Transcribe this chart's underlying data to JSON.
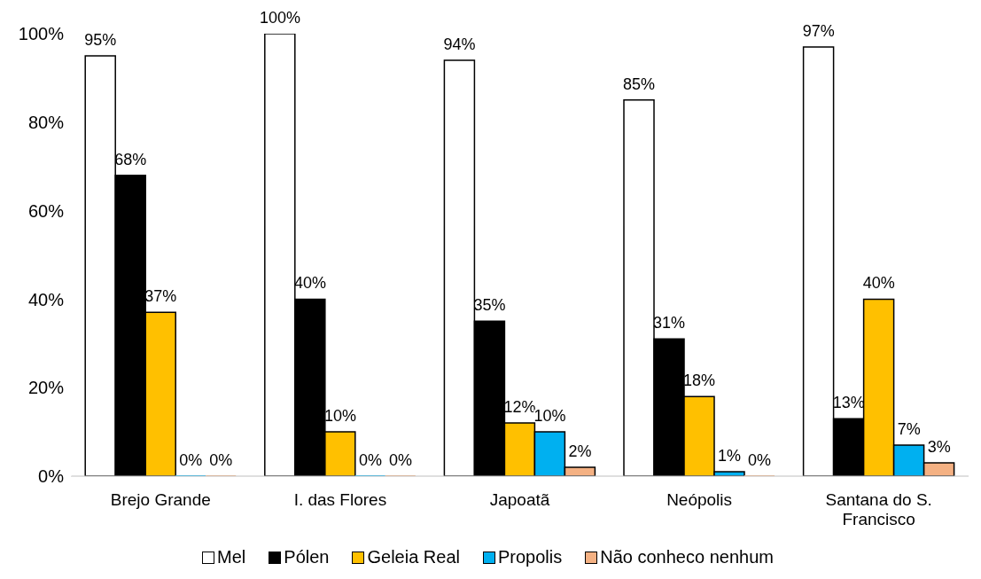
{
  "chart_data": {
    "type": "bar",
    "categories": [
      "Brejo Grande",
      "I. das Flores",
      "Japoatã",
      "Neópolis",
      "Santana do S. Francisco"
    ],
    "series": [
      {
        "name": "Mel",
        "color": "#ffffff",
        "values": [
          95,
          100,
          94,
          85,
          97
        ],
        "value_labels": [
          "95%",
          "100%",
          "94%",
          "85%",
          "97%"
        ]
      },
      {
        "name": "Pólen",
        "color": "#000000",
        "values": [
          68,
          40,
          35,
          31,
          13
        ],
        "value_labels": [
          "68%",
          "40%",
          "35%",
          "31%",
          "13%"
        ]
      },
      {
        "name": "Geleia Real",
        "color": "#ffc000",
        "values": [
          37,
          10,
          12,
          18,
          40
        ],
        "value_labels": [
          "37%",
          "10%",
          "12%",
          "18%",
          "40%"
        ]
      },
      {
        "name": "Propolis",
        "color": "#00b0f0",
        "values": [
          0,
          0,
          10,
          1,
          7
        ],
        "value_labels": [
          "0%",
          "0%",
          "10%",
          "1%",
          "7%"
        ]
      },
      {
        "name": "Não conheco nenhum",
        "color": "#f4b183",
        "values": [
          0,
          0,
          2,
          0,
          3
        ],
        "value_labels": [
          "0%",
          "0%",
          "2%",
          "0%",
          "3%"
        ]
      }
    ],
    "ylim": [
      0,
      100
    ],
    "yticks": [
      {
        "value": 0,
        "label": "0%"
      },
      {
        "value": 20,
        "label": "20%"
      },
      {
        "value": 40,
        "label": "40%"
      },
      {
        "value": 60,
        "label": "60%"
      },
      {
        "value": 80,
        "label": "80%"
      },
      {
        "value": 100,
        "label": "100%"
      }
    ],
    "legend": "bottom"
  }
}
